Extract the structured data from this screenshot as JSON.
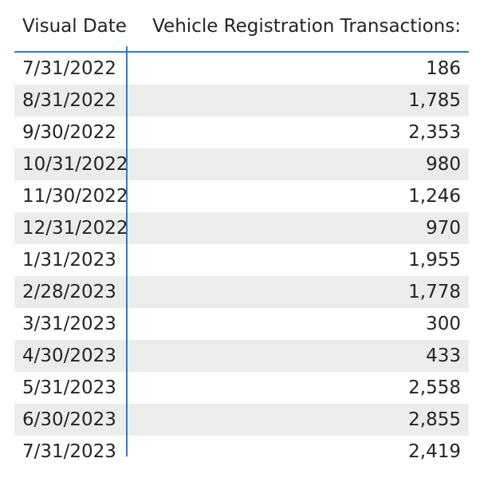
{
  "table": {
    "columns": [
      "Visual Date",
      "Vehicle Registration Transactions:"
    ],
    "rows": [
      {
        "date": "7/31/2022",
        "value": "186"
      },
      {
        "date": "8/31/2022",
        "value": "1,785"
      },
      {
        "date": "9/30/2022",
        "value": "2,353"
      },
      {
        "date": "10/31/2022",
        "value": "980"
      },
      {
        "date": "11/30/2022",
        "value": "1,246"
      },
      {
        "date": "12/31/2022",
        "value": "970"
      },
      {
        "date": "1/31/2023",
        "value": "1,955"
      },
      {
        "date": "2/28/2023",
        "value": "1,778"
      },
      {
        "date": "3/31/2023",
        "value": "300"
      },
      {
        "date": "4/30/2023",
        "value": "433"
      },
      {
        "date": "5/31/2023",
        "value": "2,558"
      },
      {
        "date": "6/30/2023",
        "value": "2,855"
      },
      {
        "date": "7/31/2023",
        "value": "2,419"
      }
    ]
  },
  "colors": {
    "accent": "#2b7bd3",
    "alt_row": "#ececec",
    "text": "#252423"
  }
}
